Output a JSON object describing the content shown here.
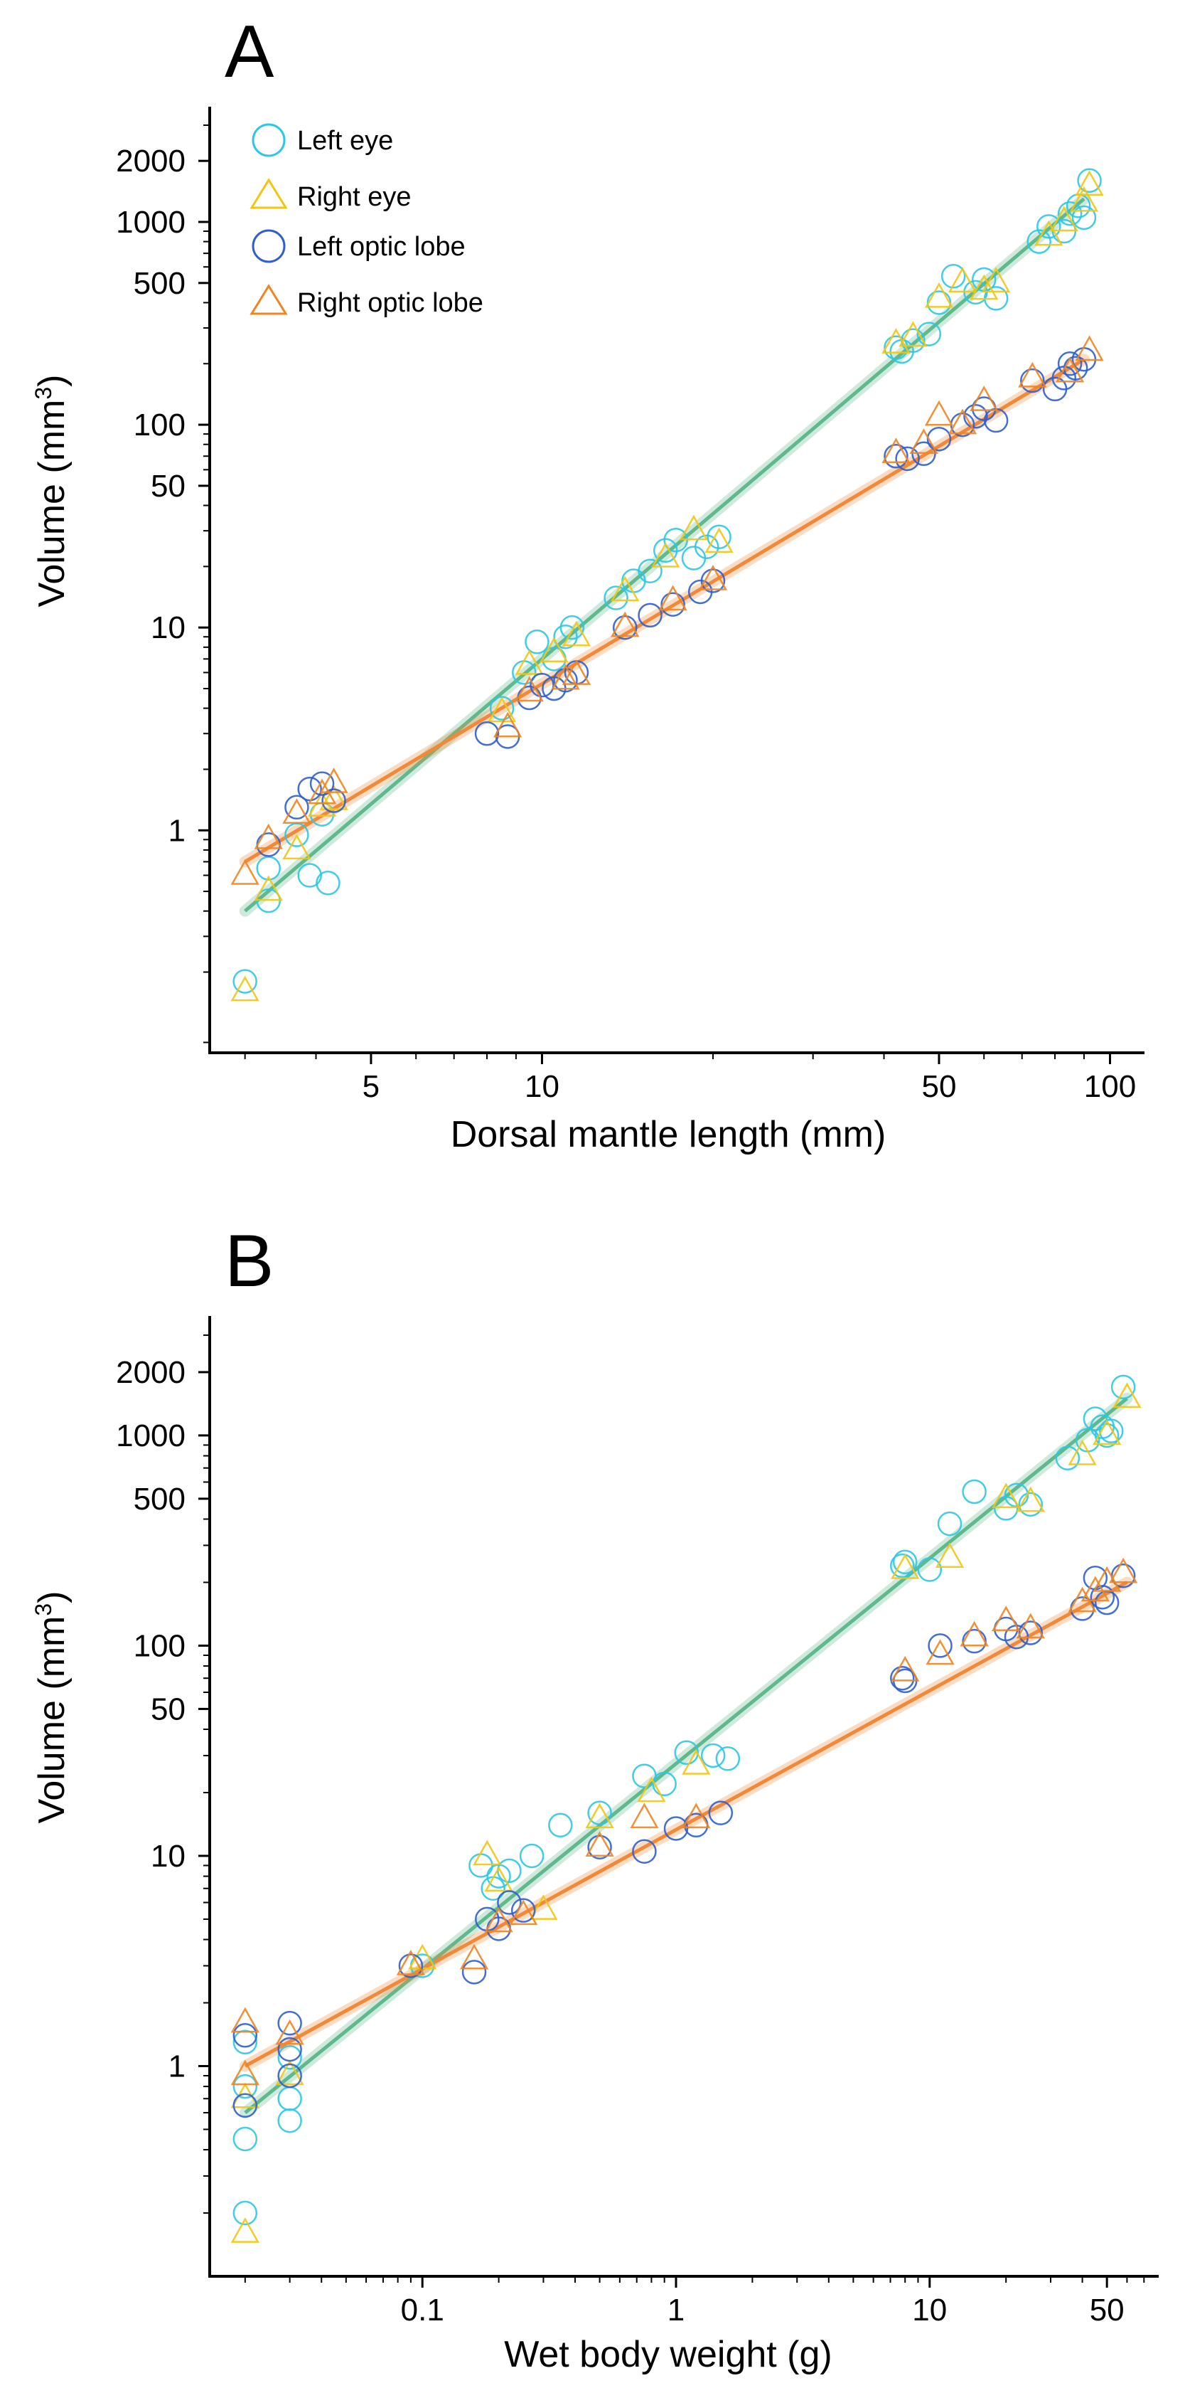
{
  "colors": {
    "left_eye": "#2cc7e6",
    "right_eye": "#f2c511",
    "left_optic_lobe": "#2f5fcf",
    "right_optic_lobe": "#f0841f",
    "eye_fit": "#5fb98c",
    "lobe_fit": "#f08a3a",
    "axis": "#000000"
  },
  "legend": [
    {
      "key": "left_eye",
      "label": "Left eye",
      "marker": "circle"
    },
    {
      "key": "right_eye",
      "label": "Right eye",
      "marker": "triangle"
    },
    {
      "key": "left_optic_lobe",
      "label": "Left optic lobe",
      "marker": "circle"
    },
    {
      "key": "right_optic_lobe",
      "label": "Right optic lobe",
      "marker": "triangle"
    }
  ],
  "chart_data": [
    {
      "panel": "A",
      "type": "scatter",
      "scale": "log-log",
      "xlabel": "Dorsal mantle length (mm)",
      "ylabel_main": "Volume (mm",
      "ylabel_sup": "3",
      "ylabel_close": ")",
      "xlim": [
        2.6,
        115
      ],
      "ylim": [
        0.08,
        3700
      ],
      "xticks": [
        {
          "value": 5,
          "label": "5"
        },
        {
          "value": 10,
          "label": "10"
        },
        {
          "value": 50,
          "label": "50"
        },
        {
          "value": 100,
          "label": "100"
        }
      ],
      "yticks": [
        {
          "value": 1,
          "label": "1"
        },
        {
          "value": 10,
          "label": "10"
        },
        {
          "value": 50,
          "label": "50"
        },
        {
          "value": 100,
          "label": "100"
        },
        {
          "value": 500,
          "label": "500"
        },
        {
          "value": 1000,
          "label": "1000"
        },
        {
          "value": 2000,
          "label": "2000"
        }
      ],
      "fits": [
        {
          "name": "eye",
          "x": [
            3,
            90
          ],
          "y": [
            0.4,
            1300
          ]
        },
        {
          "name": "optic lobe",
          "x": [
            3,
            90
          ],
          "y": [
            0.7,
            210
          ]
        }
      ],
      "series": [
        {
          "key": "left_eye",
          "name": "Left eye",
          "x": [
            3,
            3.3,
            3.3,
            3.7,
            3.9,
            4.1,
            4.2,
            8.5,
            9.3,
            9.8,
            10.5,
            11,
            11.3,
            13.5,
            14.5,
            15.5,
            16.5,
            17.2,
            18.5,
            19.5,
            20.5,
            42,
            43,
            45,
            48,
            50,
            53,
            58,
            60,
            63,
            75,
            78,
            83,
            85,
            88,
            90,
            92
          ],
          "y": [
            0.18,
            0.45,
            0.65,
            0.95,
            0.6,
            1.2,
            0.55,
            4,
            6,
            8.5,
            7,
            9,
            10,
            14,
            17,
            19,
            24,
            27,
            22,
            25,
            28,
            240,
            230,
            260,
            280,
            400,
            540,
            450,
            520,
            420,
            800,
            950,
            900,
            1100,
            1200,
            1050,
            1600
          ]
        },
        {
          "key": "right_eye",
          "name": "Right eye",
          "x": [
            3,
            3.3,
            3.7,
            4.1,
            4.3,
            8.5,
            9.5,
            10.5,
            11.5,
            14,
            16.5,
            18.5,
            20.5,
            42,
            45,
            50,
            55,
            60,
            63,
            78,
            83,
            90,
            92
          ],
          "y": [
            0.16,
            0.5,
            0.8,
            1.3,
            1.4,
            3.8,
            6.5,
            7.5,
            9,
            15,
            22,
            30,
            26,
            250,
            270,
            420,
            500,
            460,
            500,
            850,
            1000,
            1250,
            1500
          ]
        },
        {
          "key": "left_optic_lobe",
          "name": "Left optic lobe",
          "x": [
            3.3,
            3.7,
            3.9,
            4.1,
            4.3,
            8,
            8.7,
            9.5,
            10,
            10.5,
            11,
            11.5,
            14,
            15.5,
            17,
            19,
            20,
            42,
            44,
            47,
            50,
            55,
            58,
            60,
            63,
            73,
            80,
            83,
            85,
            87,
            90
          ],
          "y": [
            0.85,
            1.3,
            1.6,
            1.7,
            1.4,
            3,
            2.9,
            4.5,
            5.2,
            5,
            5.5,
            6,
            10,
            11.5,
            13,
            15,
            17,
            70,
            68,
            72,
            85,
            100,
            110,
            120,
            105,
            165,
            150,
            170,
            200,
            190,
            210
          ]
        },
        {
          "key": "right_optic_lobe",
          "name": "Right optic lobe",
          "x": [
            3,
            3.3,
            3.7,
            4.1,
            4.3,
            8.7,
            9.5,
            11,
            11.5,
            14,
            17,
            20,
            42,
            47,
            50,
            55,
            60,
            73,
            85,
            92
          ],
          "y": [
            0.6,
            0.9,
            1.2,
            1.5,
            1.7,
            3.2,
            4.8,
            5.5,
            5.8,
            10,
            13.5,
            17,
            72,
            80,
            110,
            100,
            130,
            170,
            180,
            230
          ]
        }
      ]
    },
    {
      "panel": "B",
      "type": "scatter",
      "scale": "log-log",
      "xlabel": "Wet body weight (g)",
      "ylabel_main": "Volume (mm",
      "ylabel_sup": "3",
      "ylabel_close": ")",
      "xlim": [
        0.0145,
        80
      ],
      "ylim": [
        0.1,
        3700
      ],
      "xticks": [
        {
          "value": 0.1,
          "label": "0.1"
        },
        {
          "value": 1,
          "label": "1"
        },
        {
          "value": 10,
          "label": "10"
        },
        {
          "value": 50,
          "label": "50"
        }
      ],
      "yticks": [
        {
          "value": 1,
          "label": "1"
        },
        {
          "value": 10,
          "label": "10"
        },
        {
          "value": 50,
          "label": "50"
        },
        {
          "value": 100,
          "label": "100"
        },
        {
          "value": 500,
          "label": "500"
        },
        {
          "value": 1000,
          "label": "1000"
        },
        {
          "value": 2000,
          "label": "2000"
        }
      ],
      "fits": [
        {
          "name": "eye",
          "x": [
            0.02,
            60
          ],
          "y": [
            0.6,
            1500
          ]
        },
        {
          "name": "optic lobe",
          "x": [
            0.02,
            60
          ],
          "y": [
            1.0,
            200
          ]
        }
      ],
      "series": [
        {
          "key": "left_eye",
          "name": "Left eye",
          "x": [
            0.02,
            0.02,
            0.02,
            0.02,
            0.03,
            0.03,
            0.03,
            0.1,
            0.17,
            0.19,
            0.2,
            0.22,
            0.27,
            0.35,
            0.5,
            0.75,
            0.9,
            1.1,
            1.4,
            1.6,
            7.8,
            8,
            10,
            12,
            15,
            20,
            22,
            25,
            35,
            42,
            45,
            48,
            50,
            52,
            58
          ],
          "y": [
            0.2,
            0.45,
            0.8,
            1.3,
            0.55,
            0.7,
            1.1,
            3,
            9,
            7,
            8,
            8.5,
            10,
            14,
            16,
            24,
            22,
            31,
            30,
            29,
            240,
            250,
            230,
            380,
            540,
            450,
            520,
            470,
            780,
            950,
            1200,
            1100,
            1000,
            1050,
            1700
          ]
        },
        {
          "key": "right_eye",
          "name": "Right eye",
          "x": [
            0.02,
            0.02,
            0.03,
            0.1,
            0.18,
            0.2,
            0.3,
            0.5,
            0.8,
            1.2,
            8,
            12,
            20,
            25,
            40,
            50,
            60
          ],
          "y": [
            0.16,
            0.7,
            0.9,
            3.2,
            10,
            7.5,
            5.5,
            15,
            20,
            27,
            230,
            260,
            500,
            480,
            800,
            1000,
            1500
          ]
        },
        {
          "key": "left_optic_lobe",
          "name": "Left optic lobe",
          "x": [
            0.02,
            0.02,
            0.03,
            0.03,
            0.03,
            0.09,
            0.16,
            0.18,
            0.2,
            0.22,
            0.25,
            0.5,
            0.75,
            1,
            1.2,
            1.5,
            7.8,
            8,
            11,
            15,
            20,
            22,
            25,
            40,
            45,
            48,
            50,
            58
          ],
          "y": [
            0.65,
            1.4,
            1.2,
            1.6,
            0.9,
            3,
            2.8,
            5,
            4.5,
            6,
            5.5,
            11,
            10.5,
            13.5,
            14,
            16,
            70,
            68,
            100,
            105,
            120,
            110,
            115,
            150,
            210,
            170,
            160,
            215
          ]
        },
        {
          "key": "right_optic_lobe",
          "name": "Right optic lobe",
          "x": [
            0.02,
            0.02,
            0.03,
            0.09,
            0.16,
            0.2,
            0.25,
            0.5,
            0.75,
            1.2,
            8,
            11,
            15,
            20,
            25,
            40,
            45,
            50,
            58
          ],
          "y": [
            0.9,
            1.6,
            1.4,
            3,
            3.2,
            4.8,
            5.2,
            11,
            15,
            15,
            75,
            90,
            110,
            130,
            120,
            160,
            180,
            200,
            220
          ]
        }
      ]
    }
  ]
}
